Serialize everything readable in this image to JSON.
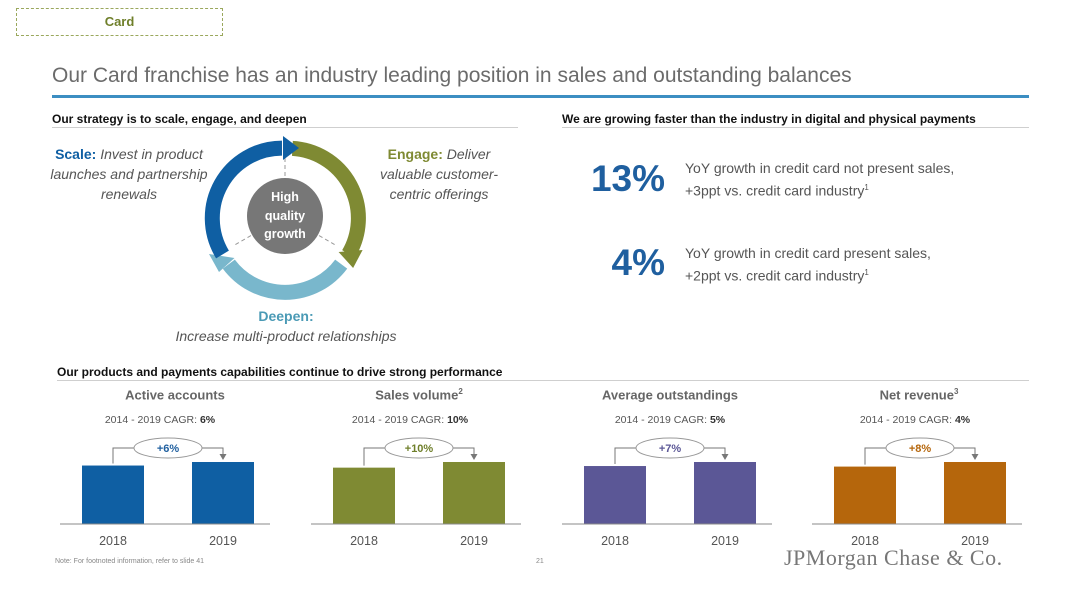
{
  "tag": "Card",
  "title": "Our Card franchise has an industry leading position in sales and outstanding balances",
  "left_section": {
    "heading": "Our strategy is to scale, engage, and deepen",
    "scale": {
      "head": "Scale:",
      "text": "Invest in product launches and partnership renewals"
    },
    "engage": {
      "head": "Engage:",
      "text": "Deliver valuable customer-centric offerings"
    },
    "deepen": {
      "head": "Deepen:",
      "text": "Increase multi-product relationships"
    },
    "center_lines": [
      "High",
      "quality",
      "growth"
    ]
  },
  "right_section": {
    "heading": "We are growing faster than the industry in digital and physical payments",
    "stats": [
      {
        "pct": "13%",
        "line1": "YoY growth in credit card not present sales,",
        "line2": "+3ppt vs. credit card industry",
        "sup": "1"
      },
      {
        "pct": "4%",
        "line1": "YoY growth in credit card present sales,",
        "line2": "+2ppt vs. credit card industry",
        "sup": "1"
      }
    ]
  },
  "bottom_section": {
    "heading": "Our products and payments capabilities continue to drive strong performance"
  },
  "colors": {
    "blue": "#0f5fa3",
    "olive": "#7f8a33",
    "purple": "#5b5796",
    "orange": "#b5660c",
    "light_blue": "#79b7cc",
    "center": "#777777"
  },
  "chart_data": [
    {
      "type": "bar",
      "title": "Active accounts",
      "sup": "",
      "cagr_label": "2014 - 2019 CAGR:",
      "cagr": "6%",
      "categories": [
        "2018",
        "2019"
      ],
      "values": [
        0.943,
        1.0
      ],
      "change_label": "+6%",
      "color": "#0f5fa3",
      "label_color": "#1f5f9f"
    },
    {
      "type": "bar",
      "title": "Sales volume",
      "sup": "2",
      "cagr_label": "2014 - 2019 CAGR:",
      "cagr": "10%",
      "categories": [
        "2018",
        "2019"
      ],
      "values": [
        0.909,
        1.0
      ],
      "change_label": "+10%",
      "color": "#7f8a33",
      "label_color": "#6f7f2a"
    },
    {
      "type": "bar",
      "title": "Average outstandings",
      "sup": "",
      "cagr_label": "2014 - 2019 CAGR:",
      "cagr": "5%",
      "categories": [
        "2018",
        "2019"
      ],
      "values": [
        0.935,
        1.0
      ],
      "change_label": "+7%",
      "color": "#5b5796",
      "label_color": "#5b5796"
    },
    {
      "type": "bar",
      "title": "Net revenue",
      "sup": "3",
      "cagr_label": "2014 - 2019 CAGR:",
      "cagr": "4%",
      "categories": [
        "2018",
        "2019"
      ],
      "values": [
        0.926,
        1.0
      ],
      "change_label": "+8%",
      "color": "#b5660c",
      "label_color": "#b5660c"
    }
  ],
  "footnote": "Note: For footnoted information, refer to slide 41",
  "page_number": "21",
  "logo": "JPMorgan Chase & Co."
}
